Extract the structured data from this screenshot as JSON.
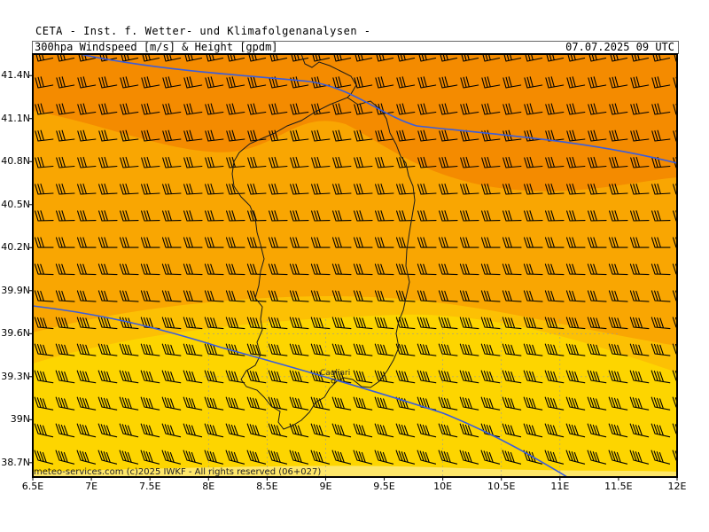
{
  "header": {
    "title": "CETA - Inst. f. Wetter- und Klimafolgenanalysen -",
    "subtitle": "300hpa Windspeed [m/s] & Height [gpdm]",
    "datetime": "07.07.2025 09 UTC"
  },
  "map": {
    "lat_labels": [
      "41.4N",
      "41.1N",
      "40.8N",
      "40.5N",
      "40.2N",
      "39.9N",
      "39.6N",
      "39.3N",
      "39N",
      "38.7N"
    ],
    "lat_values": [
      41.4,
      41.1,
      40.8,
      40.5,
      40.2,
      39.9,
      39.6,
      39.3,
      39.0,
      38.7
    ],
    "lon_labels": [
      "6.5E",
      "7E",
      "7.5E",
      "8E",
      "8.5E",
      "9E",
      "9.5E",
      "10E",
      "10.5E",
      "11E",
      "11.5E",
      "12E"
    ],
    "lon_values": [
      6.5,
      7,
      7.5,
      8,
      8.5,
      9,
      9.5,
      10,
      10.5,
      11,
      11.5,
      12
    ],
    "city": "Cagliari",
    "copyright": "meteo-services.com (c)2025 IWKF - All rights reserved (06+027)",
    "colors": {
      "strong": "#f48b00",
      "orange": "#f9a602",
      "light": "#fcc004",
      "yellow": "#fdd500",
      "pale": "#fde66a",
      "contour": "#3a5ddc",
      "coast": "#1a1a1a"
    }
  }
}
